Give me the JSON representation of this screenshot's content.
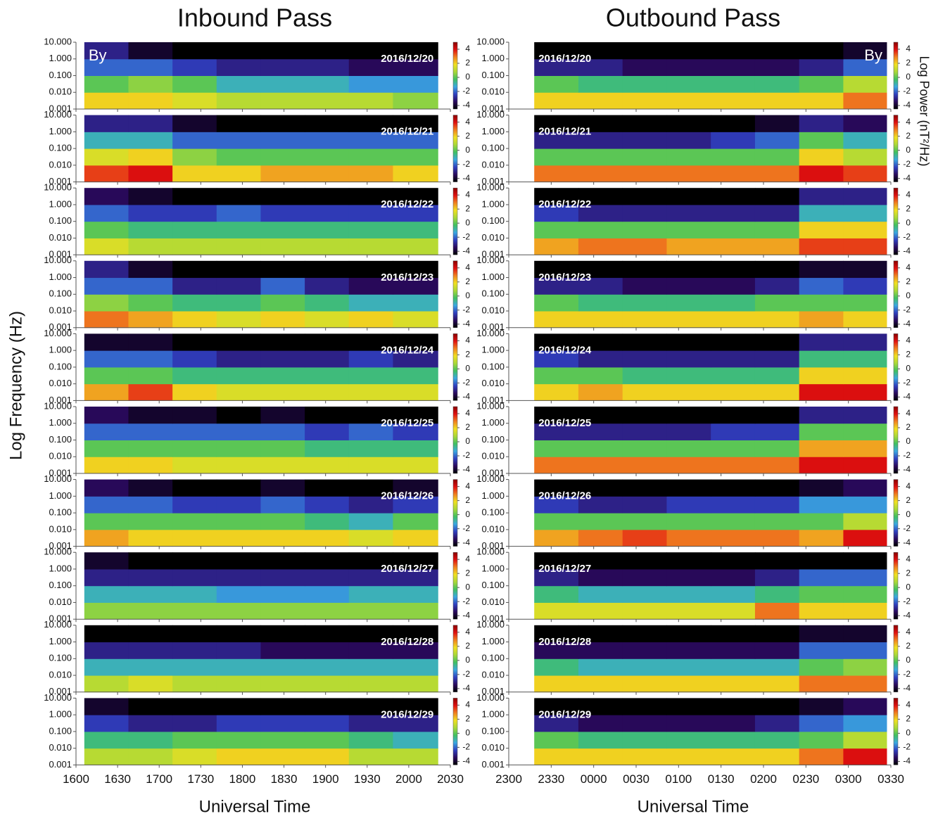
{
  "chart_data": [
    {
      "type": "heatmap",
      "title": "Inbound Pass",
      "xlabel": "Universal Time",
      "ylabel": "Log Frequency (Hz)",
      "component": "By",
      "xlim": [
        16,
        20.5
      ],
      "xticks": [
        {
          "value": 16,
          "label": "1600"
        },
        {
          "value": 16.5,
          "label": "1630"
        },
        {
          "value": 17,
          "label": "1700"
        },
        {
          "value": 17.5,
          "label": "1730"
        },
        {
          "value": 18,
          "label": "1800"
        },
        {
          "value": 18.5,
          "label": "1830"
        },
        {
          "value": 19,
          "label": "1900"
        },
        {
          "value": 19.5,
          "label": "1930"
        },
        {
          "value": 20,
          "label": "2000"
        },
        {
          "value": 20.5,
          "label": "2030"
        }
      ],
      "ylim": [
        0.001,
        10
      ],
      "ylog": true,
      "yticks": [
        {
          "value": 0.001,
          "label": "0.001"
        },
        {
          "value": 0.01,
          "label": "0.010"
        },
        {
          "value": 0.1,
          "label": "0.100"
        },
        {
          "value": 1,
          "label": "1.000"
        },
        {
          "value": 10,
          "label": "10.000"
        }
      ],
      "xbins": [
        16.1,
        16.63,
        17.16,
        17.69,
        18.22,
        18.75,
        19.28,
        19.81,
        20.35
      ],
      "ybins": [
        0.001,
        0.01,
        0.1,
        1,
        10
      ],
      "clim": [
        -4.5,
        5
      ],
      "cticks": [
        4,
        2,
        0,
        -2,
        -4
      ],
      "colormap": [
        "#000000",
        "#2a0a5e",
        "#3040c0",
        "#3aa8e0",
        "#40c060",
        "#a8d838",
        "#f0e020",
        "#f08020",
        "#e01010",
        "#8a0000"
      ],
      "panels": [
        {
          "label": "2016/12/20",
          "z": [
            [
              2,
              2,
              1.5,
              1,
              1,
              1,
              1,
              0.5
            ],
            [
              0,
              0.5,
              0,
              -1,
              -1,
              -1,
              -1.5,
              -1.5
            ],
            [
              -2,
              -2,
              -2.5,
              -3,
              -3,
              -3,
              -3.5,
              -3.5
            ],
            [
              -3,
              -4,
              -4.5,
              -4.5,
              -4.5,
              -4.5,
              -4.5,
              -4.5
            ]
          ]
        },
        {
          "label": "2016/12/21",
          "z": [
            [
              3.5,
              4,
              2,
              2,
              2.5,
              2.5,
              2.5,
              2
            ],
            [
              1.5,
              2,
              0.5,
              0,
              0,
              0,
              0,
              0
            ],
            [
              -1,
              -1,
              -2,
              -2,
              -2,
              -2,
              -2,
              -2
            ],
            [
              -3,
              -3,
              -4,
              -4.5,
              -4.5,
              -4.5,
              -4.5,
              -4.5
            ]
          ]
        },
        {
          "label": "2016/12/22",
          "z": [
            [
              1.5,
              1,
              1,
              1,
              1,
              1,
              1,
              1
            ],
            [
              0,
              -0.5,
              -0.5,
              -0.5,
              -0.5,
              -0.5,
              -0.5,
              -0.5
            ],
            [
              -2,
              -2.5,
              -2.5,
              -2,
              -2.5,
              -2.5,
              -2.5,
              -2.5
            ],
            [
              -3.5,
              -4,
              -4.5,
              -4.5,
              -4.5,
              -4.5,
              -4.5,
              -4.5
            ]
          ]
        },
        {
          "label": "2016/12/23",
          "z": [
            [
              3,
              2.5,
              2,
              1.5,
              2,
              1.5,
              2,
              1.5
            ],
            [
              0.5,
              0,
              -0.5,
              -0.5,
              0,
              -0.5,
              -1,
              -1
            ],
            [
              -2,
              -2,
              -3,
              -3,
              -2,
              -3,
              -3.5,
              -3.5
            ],
            [
              -3,
              -4,
              -4.5,
              -4.5,
              -4.5,
              -4.5,
              -4.5,
              -4.5
            ]
          ]
        },
        {
          "label": "2016/12/24",
          "z": [
            [
              2.5,
              3.5,
              2,
              1.5,
              1.5,
              1.5,
              1.5,
              1.5
            ],
            [
              0,
              0,
              -0.5,
              -0.5,
              -0.5,
              -0.5,
              -0.5,
              -0.5
            ],
            [
              -2,
              -2,
              -2.5,
              -3,
              -3,
              -3,
              -2.5,
              -3
            ],
            [
              -4,
              -4,
              -4.5,
              -4.5,
              -4.5,
              -4.5,
              -4.5,
              -4.5
            ]
          ]
        },
        {
          "label": "2016/12/25",
          "z": [
            [
              2,
              2,
              1.5,
              1.5,
              1.5,
              1.5,
              1.5,
              1.5
            ],
            [
              0,
              0,
              0,
              0,
              0,
              -0.5,
              -0.5,
              -0.5
            ],
            [
              -2,
              -2,
              -2,
              -2,
              -2,
              -2.5,
              -2,
              -2.5
            ],
            [
              -3.5,
              -4,
              -4,
              -4.5,
              -4,
              -4.5,
              -4.5,
              -4.5
            ]
          ]
        },
        {
          "label": "2016/12/26",
          "z": [
            [
              2.5,
              2,
              2,
              2,
              2,
              2,
              1.5,
              2
            ],
            [
              0,
              0,
              0,
              0,
              0,
              -0.5,
              -1,
              0
            ],
            [
              -2,
              -2,
              -2.5,
              -2.5,
              -2,
              -2.5,
              -3,
              -2.5
            ],
            [
              -3.5,
              -4,
              -4.5,
              -4.5,
              -4,
              -4.5,
              -4.5,
              -4
            ]
          ]
        },
        {
          "label": "2016/12/27",
          "z": [
            [
              0.5,
              0.5,
              0.5,
              0.5,
              0.5,
              0.5,
              0.5,
              0.5
            ],
            [
              -1,
              -1,
              -1,
              -1.5,
              -1.5,
              -1.5,
              -1,
              -1
            ],
            [
              -3,
              -3,
              -3,
              -3,
              -3,
              -3,
              -3,
              -3
            ],
            [
              -4,
              -4.5,
              -4.5,
              -4.5,
              -4.5,
              -4.5,
              -4.5,
              -4.5
            ]
          ]
        },
        {
          "label": "2016/12/28",
          "z": [
            [
              1,
              1.5,
              1,
              1,
              1,
              1,
              1,
              1
            ],
            [
              -1,
              -1,
              -1,
              -1,
              -1,
              -1,
              -1,
              -1
            ],
            [
              -3,
              -3,
              -3,
              -3,
              -3.5,
              -3.5,
              -3.5,
              -3.5
            ],
            [
              -4.5,
              -4.5,
              -4.5,
              -4.5,
              -4.5,
              -4.5,
              -4.5,
              -4.5
            ]
          ]
        },
        {
          "label": "2016/12/29",
          "z": [
            [
              1,
              1,
              1.5,
              2,
              2,
              2,
              1,
              1
            ],
            [
              -0.5,
              -0.5,
              0,
              0,
              0,
              0,
              -0.5,
              -1
            ],
            [
              -2.5,
              -3,
              -3,
              -2.5,
              -2.5,
              -2.5,
              -3,
              -3
            ],
            [
              -4,
              -4.5,
              -4.5,
              -4.5,
              -4.5,
              -4.5,
              -4.5,
              -4.5
            ]
          ]
        }
      ]
    },
    {
      "type": "heatmap",
      "title": "Outbound Pass",
      "xlabel": "Universal Time",
      "component": "By",
      "colorbar_label": "Log Power (nT²/Hz)",
      "xlim": [
        23,
        27.5
      ],
      "xticks": [
        {
          "value": 23,
          "label": "2300"
        },
        {
          "value": 23.5,
          "label": "2330"
        },
        {
          "value": 24,
          "label": "0000"
        },
        {
          "value": 24.5,
          "label": "0030"
        },
        {
          "value": 25,
          "label": "0100"
        },
        {
          "value": 25.5,
          "label": "0130"
        },
        {
          "value": 26,
          "label": "0200"
        },
        {
          "value": 26.5,
          "label": "0230"
        },
        {
          "value": 27,
          "label": "0300"
        },
        {
          "value": 27.5,
          "label": "0330"
        }
      ],
      "ylim": [
        0.001,
        10
      ],
      "ylog": true,
      "yticks": [
        {
          "value": 0.001,
          "label": "0.001"
        },
        {
          "value": 0.01,
          "label": "0.010"
        },
        {
          "value": 0.1,
          "label": "0.100"
        },
        {
          "value": 1,
          "label": "1.000"
        },
        {
          "value": 10,
          "label": "10.000"
        }
      ],
      "xbins": [
        23.3,
        23.82,
        24.34,
        24.86,
        25.38,
        25.9,
        26.42,
        26.94,
        27.45
      ],
      "ybins": [
        0.001,
        0.01,
        0.1,
        1,
        10
      ],
      "clim": [
        -4.5,
        5
      ],
      "cticks": [
        4,
        2,
        0,
        -2,
        -4
      ],
      "colormap": [
        "#000000",
        "#2a0a5e",
        "#3040c0",
        "#3aa8e0",
        "#40c060",
        "#a8d838",
        "#f0e020",
        "#f08020",
        "#e01010",
        "#8a0000"
      ],
      "panels": [
        {
          "label": "2016/12/20",
          "z": [
            [
              2,
              2,
              2,
              2,
              2,
              2,
              2,
              3
            ],
            [
              0,
              -0.5,
              -0.5,
              -0.5,
              -0.5,
              -0.5,
              0,
              1
            ],
            [
              -3,
              -3,
              -3.5,
              -3.5,
              -3.5,
              -3.5,
              -3,
              -2
            ],
            [
              -4.5,
              -4.5,
              -4.5,
              -4.5,
              -4.5,
              -4.5,
              -4.5,
              -4
            ]
          ]
        },
        {
          "label": "2016/12/21",
          "z": [
            [
              3,
              3,
              3,
              3,
              3,
              3,
              4,
              3.5
            ],
            [
              0,
              0,
              0,
              0,
              0,
              0,
              2,
              1
            ],
            [
              -3,
              -3,
              -3,
              -3,
              -2.5,
              -2,
              0,
              -1
            ],
            [
              -4.5,
              -4.5,
              -4.5,
              -4.5,
              -4.5,
              -4,
              -3,
              -3.5
            ]
          ]
        },
        {
          "label": "2016/12/22",
          "z": [
            [
              2.5,
              3,
              3,
              2.5,
              2.5,
              2.5,
              3.5,
              3.5
            ],
            [
              0,
              0,
              0,
              0,
              0,
              0,
              2,
              2
            ],
            [
              -2.5,
              -3,
              -3,
              -3,
              -3,
              -3,
              -1,
              -1
            ],
            [
              -4.5,
              -4.5,
              -4.5,
              -4.5,
              -4.5,
              -4.5,
              -3,
              -3
            ]
          ]
        },
        {
          "label": "2016/12/23",
          "z": [
            [
              2,
              2,
              2,
              2,
              2,
              2,
              2.5,
              2
            ],
            [
              0,
              -0.5,
              -0.5,
              -0.5,
              -0.5,
              0,
              0,
              0
            ],
            [
              -3,
              -3,
              -3.5,
              -3.5,
              -3.5,
              -3,
              -2,
              -2.5
            ],
            [
              -4.5,
              -4.5,
              -4.5,
              -4.5,
              -4.5,
              -4.5,
              -4,
              -4
            ]
          ]
        },
        {
          "label": "2016/12/24",
          "z": [
            [
              2,
              2.5,
              2,
              2,
              2,
              2,
              4,
              4
            ],
            [
              0,
              0,
              -0.5,
              -0.5,
              -0.5,
              -0.5,
              2,
              2
            ],
            [
              -2.5,
              -3,
              -3,
              -3,
              -3,
              -3,
              -0.5,
              -0.5
            ],
            [
              -4.5,
              -4.5,
              -4.5,
              -4.5,
              -4.5,
              -4.5,
              -3,
              -3
            ]
          ]
        },
        {
          "label": "2016/12/25",
          "z": [
            [
              3,
              3,
              3,
              3,
              3,
              3,
              4,
              4
            ],
            [
              0,
              0,
              0,
              0,
              0,
              0,
              2.5,
              2.5
            ],
            [
              -3,
              -3,
              -3,
              -3,
              -2.5,
              -2.5,
              0,
              0
            ],
            [
              -4.5,
              -4.5,
              -4.5,
              -4.5,
              -4.5,
              -4.5,
              -3,
              -3
            ]
          ]
        },
        {
          "label": "2016/12/26",
          "z": [
            [
              2.5,
              3,
              3.5,
              3,
              3,
              3,
              2.5,
              4
            ],
            [
              0,
              0,
              0,
              0,
              0,
              0,
              0,
              1
            ],
            [
              -2.5,
              -3,
              -3,
              -2.5,
              -2.5,
              -2.5,
              -1.5,
              -1.5
            ],
            [
              -4.5,
              -4.5,
              -4.5,
              -4.5,
              -4.5,
              -4.5,
              -4,
              -3.5
            ]
          ]
        },
        {
          "label": "2016/12/27",
          "z": [
            [
              1.5,
              1.5,
              1.5,
              1.5,
              1.5,
              3,
              2,
              2
            ],
            [
              -0.5,
              -1,
              -1,
              -1,
              -1,
              -0.5,
              0,
              0
            ],
            [
              -3,
              -3.5,
              -3.5,
              -3.5,
              -3.5,
              -3,
              -2,
              -2
            ],
            [
              -4.5,
              -4.5,
              -4.5,
              -4.5,
              -4.5,
              -4.5,
              -4.5,
              -4.5
            ]
          ]
        },
        {
          "label": "2016/12/28",
          "z": [
            [
              2,
              2,
              2,
              2,
              2,
              2,
              3,
              3
            ],
            [
              -0.5,
              -1,
              -1,
              -1,
              -1,
              -1,
              0,
              0.5
            ],
            [
              -3.5,
              -3.5,
              -3.5,
              -3.5,
              -3.5,
              -3.5,
              -2,
              -2
            ],
            [
              -4.5,
              -4.5,
              -4.5,
              -4.5,
              -4.5,
              -4.5,
              -4,
              -4
            ]
          ]
        },
        {
          "label": "2016/12/29",
          "z": [
            [
              2,
              2,
              2,
              2,
              2,
              2,
              3,
              4
            ],
            [
              0,
              -0.5,
              -0.5,
              -0.5,
              -0.5,
              -0.5,
              0,
              1
            ],
            [
              -3,
              -3.5,
              -3.5,
              -3.5,
              -3.5,
              -3,
              -2,
              -1.5
            ],
            [
              -4.5,
              -4.5,
              -4.5,
              -4.5,
              -4.5,
              -4.5,
              -4,
              -3.5
            ]
          ]
        }
      ]
    }
  ]
}
